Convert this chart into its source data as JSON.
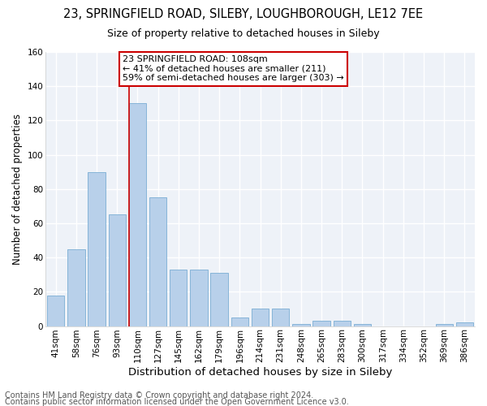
{
  "title": "23, SPRINGFIELD ROAD, SILEBY, LOUGHBOROUGH, LE12 7EE",
  "subtitle": "Size of property relative to detached houses in Sileby",
  "xlabel": "Distribution of detached houses by size in Sileby",
  "ylabel": "Number of detached properties",
  "categories": [
    "41sqm",
    "58sqm",
    "76sqm",
    "93sqm",
    "110sqm",
    "127sqm",
    "145sqm",
    "162sqm",
    "179sqm",
    "196sqm",
    "214sqm",
    "231sqm",
    "248sqm",
    "265sqm",
    "283sqm",
    "300sqm",
    "317sqm",
    "334sqm",
    "352sqm",
    "369sqm",
    "386sqm"
  ],
  "values": [
    18,
    45,
    90,
    65,
    130,
    75,
    33,
    33,
    31,
    5,
    10,
    10,
    1,
    3,
    3,
    1,
    0,
    0,
    0,
    1,
    2
  ],
  "highlight_index": 4,
  "bar_color": "#b8d0ea",
  "bar_edge_color": "#7aadd4",
  "highlight_line_color": "#cc0000",
  "annotation_box_edge": "#cc0000",
  "annotation_text": "23 SPRINGFIELD ROAD: 108sqm\n← 41% of detached houses are smaller (211)\n59% of semi-detached houses are larger (303) →",
  "ylim": [
    0,
    160
  ],
  "yticks": [
    0,
    20,
    40,
    60,
    80,
    100,
    120,
    140,
    160
  ],
  "footnote1": "Contains HM Land Registry data © Crown copyright and database right 2024.",
  "footnote2": "Contains public sector information licensed under the Open Government Licence v3.0.",
  "bg_color": "#ffffff",
  "plot_bg_color": "#eef2f8",
  "grid_color": "#ffffff",
  "title_fontsize": 10.5,
  "subtitle_fontsize": 9,
  "xlabel_fontsize": 9.5,
  "ylabel_fontsize": 8.5,
  "tick_fontsize": 7.5,
  "annotation_fontsize": 8,
  "footnote_fontsize": 7
}
